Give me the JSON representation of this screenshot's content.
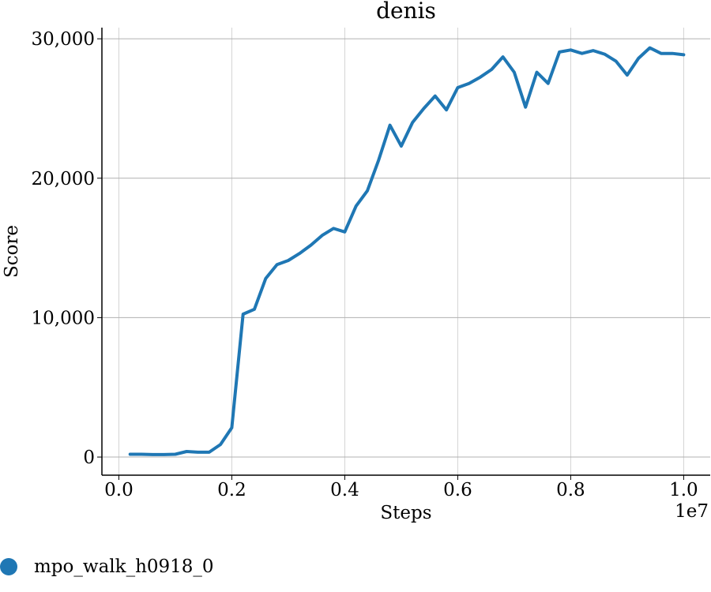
{
  "chart_data": {
    "type": "line",
    "title": "denis",
    "xlabel": "Steps",
    "ylabel": "Score",
    "x_offset_label": "1e7",
    "xlim": [
      -0.03,
      1.047
    ],
    "ylim": [
      -1300,
      30800
    ],
    "x_ticks": [
      0.0,
      0.2,
      0.4,
      0.6,
      0.8,
      1.0
    ],
    "x_tick_labels": [
      "0.0",
      "0.2",
      "0.4",
      "0.6",
      "0.8",
      "1.0"
    ],
    "y_ticks": [
      0,
      10000,
      20000,
      30000
    ],
    "y_tick_labels": [
      "0",
      "10,000",
      "20,000",
      "30,000"
    ],
    "grid": true,
    "legend_position": "bottom-left",
    "series": [
      {
        "name": "mpo_walk_h0918_0",
        "color": "#1f77b4",
        "x": [
          0.02,
          0.04,
          0.06,
          0.08,
          0.1,
          0.12,
          0.14,
          0.16,
          0.18,
          0.2,
          0.22,
          0.24,
          0.26,
          0.28,
          0.3,
          0.32,
          0.34,
          0.36,
          0.38,
          0.4,
          0.42,
          0.44,
          0.46,
          0.48,
          0.5,
          0.52,
          0.54,
          0.56,
          0.58,
          0.6,
          0.62,
          0.64,
          0.66,
          0.68,
          0.7,
          0.72,
          0.74,
          0.76,
          0.78,
          0.8,
          0.82,
          0.84,
          0.86,
          0.88,
          0.9,
          0.92,
          0.94,
          0.96,
          0.98,
          1.0
        ],
        "y": [
          200,
          200,
          180,
          180,
          200,
          400,
          350,
          350,
          900,
          2100,
          10250,
          10600,
          12800,
          13800,
          14100,
          14600,
          15200,
          15900,
          16400,
          16150,
          18000,
          19100,
          21300,
          23800,
          22300,
          24000,
          25000,
          25900,
          24900,
          26500,
          26800,
          27250,
          27800,
          28700,
          27600,
          25100,
          27600,
          26800,
          29050,
          29200,
          28950,
          29150,
          28900,
          28400,
          27400,
          28600,
          29350,
          28950,
          28950,
          28850
        ]
      }
    ]
  }
}
